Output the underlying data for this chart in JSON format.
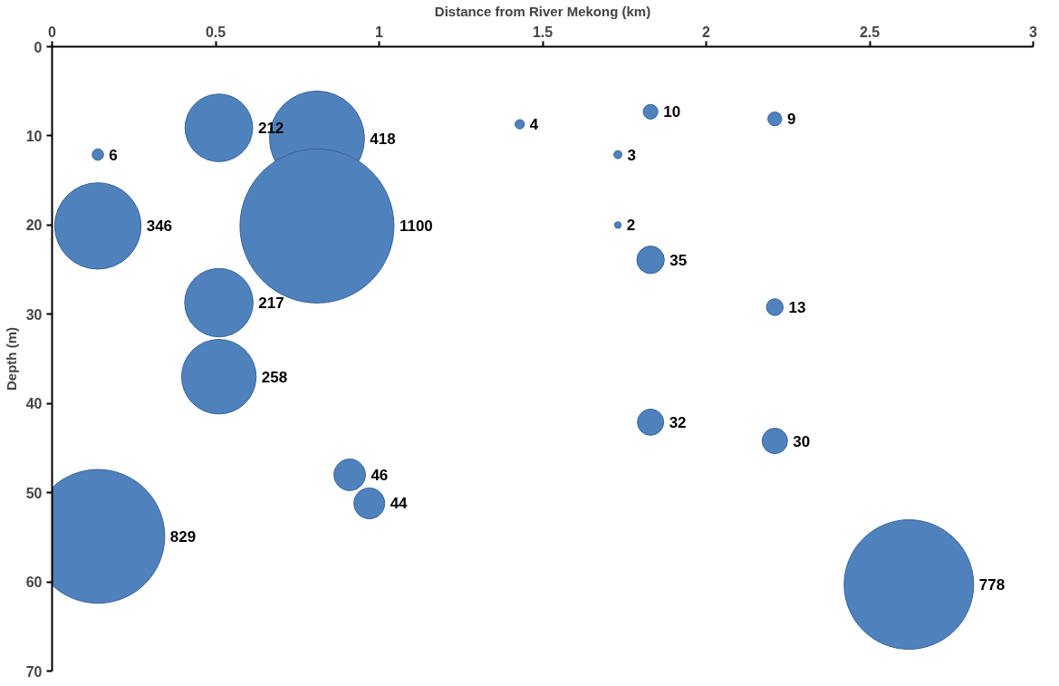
{
  "chart_data": {
    "type": "bubble",
    "xlabel": "Distance from River Mekong (km)",
    "ylabel": "Depth (m)",
    "x": [
      0.14,
      0.51,
      0.81,
      1.43,
      1.83,
      2.21,
      1.73,
      0.14,
      0.81,
      1.73,
      1.83,
      2.21,
      0.51,
      0.51,
      1.83,
      2.21,
      0.91,
      0.97,
      0.14,
      2.62
    ],
    "values": [
      12.1,
      9.1,
      10.3,
      8.7,
      7.3,
      8.1,
      12.1,
      20.1,
      20.1,
      20,
      23.9,
      29.2,
      28.7,
      37,
      42.1,
      44.2,
      48,
      51.2,
      54.9,
      60.3
    ],
    "sizes": [
      6,
      212,
      418,
      4,
      10,
      9,
      3,
      346,
      1100,
      2,
      35,
      13,
      217,
      258,
      32,
      30,
      46,
      44,
      829,
      778
    ],
    "value_labels": [
      "6",
      "212",
      "418",
      "4",
      "10",
      "9",
      "3",
      "346",
      "1100",
      "2",
      "35",
      "13",
      "217",
      "258",
      "32",
      "30",
      "46",
      "44",
      "829",
      "778"
    ],
    "color": "#4f81bd",
    "xlim": [
      0,
      3
    ],
    "xticks": [
      0,
      0.5,
      1,
      1.5,
      2,
      2.5,
      3
    ],
    "ylim": [
      70,
      0
    ],
    "yticks": [
      0,
      10,
      20,
      30,
      40,
      50,
      60,
      70
    ],
    "grid": false
  }
}
